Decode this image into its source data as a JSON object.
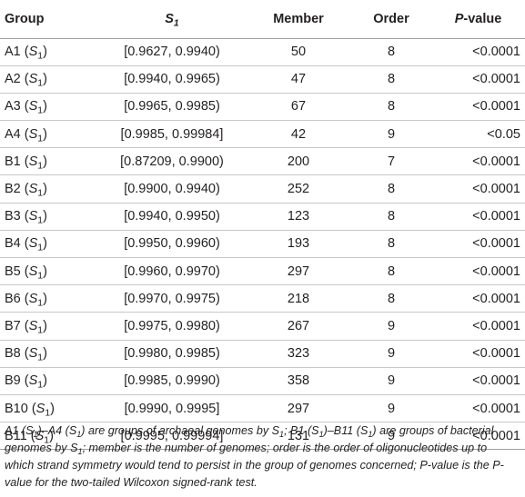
{
  "header": {
    "group": "Group",
    "s1_letter": "S",
    "s1_sub": "1",
    "member": "Member",
    "order": "Order",
    "p_letter": "P",
    "p_rest": "-value"
  },
  "rows": [
    {
      "group": "A1",
      "s_letter": "S",
      "s_sub": "1",
      "s1": "[0.9627, 0.9940)",
      "member": "50",
      "order": "8",
      "p": "<0.0001"
    },
    {
      "group": "A2",
      "s_letter": "S",
      "s_sub": "1",
      "s1": "[0.9940, 0.9965)",
      "member": "47",
      "order": "8",
      "p": "<0.0001"
    },
    {
      "group": "A3",
      "s_letter": "S",
      "s_sub": "1",
      "s1": "[0.9965, 0.9985)",
      "member": "67",
      "order": "8",
      "p": "<0.0001"
    },
    {
      "group": "A4",
      "s_letter": "S",
      "s_sub": "1",
      "s1": "[0.9985, 0.99984]",
      "member": "42",
      "order": "9",
      "p": "<0.05"
    },
    {
      "group": "B1",
      "s_letter": "S",
      "s_sub": "1",
      "s1": "[0.87209, 0.9900)",
      "member": "200",
      "order": "7",
      "p": "<0.0001"
    },
    {
      "group": "B2",
      "s_letter": "S",
      "s_sub": "1",
      "s1": "[0.9900, 0.9940)",
      "member": "252",
      "order": "8",
      "p": "<0.0001"
    },
    {
      "group": "B3",
      "s_letter": "S",
      "s_sub": "1",
      "s1": "[0.9940, 0.9950)",
      "member": "123",
      "order": "8",
      "p": "<0.0001"
    },
    {
      "group": "B4",
      "s_letter": "S",
      "s_sub": "1",
      "s1": "[0.9950, 0.9960)",
      "member": "193",
      "order": "8",
      "p": "<0.0001"
    },
    {
      "group": "B5",
      "s_letter": "S",
      "s_sub": "1",
      "s1": "[0.9960, 0.9970)",
      "member": "297",
      "order": "8",
      "p": "<0.0001"
    },
    {
      "group": "B6",
      "s_letter": "S",
      "s_sub": "1",
      "s1": "[0.9970, 0.9975)",
      "member": "218",
      "order": "8",
      "p": "<0.0001"
    },
    {
      "group": "B7",
      "s_letter": "S",
      "s_sub": "1",
      "s1": "[0.9975, 0.9980)",
      "member": "267",
      "order": "9",
      "p": "<0.0001"
    },
    {
      "group": "B8",
      "s_letter": "S",
      "s_sub": "1",
      "s1": "[0.9980, 0.9985)",
      "member": "323",
      "order": "9",
      "p": "<0.0001"
    },
    {
      "group": "B9",
      "s_letter": "S",
      "s_sub": "1",
      "s1": "[0.9985, 0.9990)",
      "member": "358",
      "order": "9",
      "p": "<0.0001"
    },
    {
      "group": "B10",
      "s_letter": "S",
      "s_sub": "1",
      "s1": "[0.9990, 0.9995]",
      "member": "297",
      "order": "9",
      "p": "<0.0001"
    },
    {
      "group": "B11",
      "s_letter": "S",
      "s_sub": "1",
      "s1": "[0.9995, 0.99994]",
      "member": "131",
      "order": "9",
      "p": "<0.0001"
    }
  ],
  "footnote": {
    "text": "A1 (S1)–A4 (S1) are groups of archaeal genomes by S1; B1 (S1)–B11 (S1) are groups of bacterial genomes by S1; member is the number of genomes; order is the order of oligonucleotides up to which strand symmetry would tend to persist in the group of genomes concerned; P-value is the P-value for the two-tailed Wilcoxon signed-rank test."
  }
}
